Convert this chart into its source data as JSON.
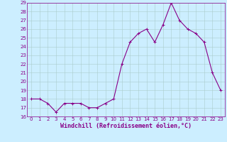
{
  "x": [
    0,
    1,
    2,
    3,
    4,
    5,
    6,
    7,
    8,
    9,
    10,
    11,
    12,
    13,
    14,
    15,
    16,
    17,
    18,
    19,
    20,
    21,
    22,
    23
  ],
  "y": [
    18,
    18,
    17.5,
    16.5,
    17.5,
    17.5,
    17.5,
    17,
    17,
    17.5,
    18,
    22,
    24.5,
    25.5,
    26,
    24.5,
    26.5,
    29,
    27,
    26,
    25.5,
    24.5,
    21,
    19
  ],
  "line_color": "#880088",
  "marker": "+",
  "marker_size": 3,
  "bg_color": "#cceeff",
  "grid_color": "#aacccc",
  "xlabel": "Windchill (Refroidissement éolien,°C)",
  "xlabel_color": "#880088",
  "xtick_labels": [
    "0",
    "1",
    "2",
    "3",
    "4",
    "5",
    "6",
    "7",
    "8",
    "9",
    "10",
    "11",
    "12",
    "13",
    "14",
    "15",
    "16",
    "17",
    "18",
    "19",
    "20",
    "21",
    "22",
    "23"
  ],
  "ylim": [
    16,
    29
  ],
  "yticks": [
    16,
    17,
    18,
    19,
    20,
    21,
    22,
    23,
    24,
    25,
    26,
    27,
    28,
    29
  ],
  "tick_color": "#880088",
  "tick_fontsize": 5.0,
  "xlabel_fontsize": 6.0,
  "line_width": 0.8,
  "marker_edge_width": 0.7
}
